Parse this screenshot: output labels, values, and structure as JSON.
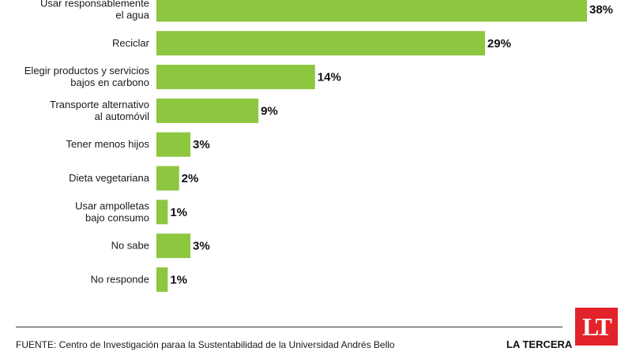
{
  "chart_data": {
    "type": "bar",
    "orientation": "horizontal",
    "categories": [
      [
        "Usar responsablemente",
        "el agua"
      ],
      [
        "Reciclar"
      ],
      [
        "Elegir productos y servicios",
        "bajos en carbono"
      ],
      [
        "Transporte alternativo",
        "al automóvil"
      ],
      [
        "Tener menos hijos"
      ],
      [
        "Dieta vegetariana"
      ],
      [
        "Usar ampolletas",
        "bajo consumo"
      ],
      [
        "No sabe"
      ],
      [
        "No responde"
      ]
    ],
    "values": [
      38,
      29,
      14,
      9,
      3,
      2,
      1,
      3,
      1
    ],
    "value_labels": [
      "38%",
      "29%",
      "14%",
      "9%",
      "3%",
      "2%",
      "1%",
      "3%",
      "1%"
    ],
    "bar_color": "#8dc63f",
    "xlim": [
      0,
      38
    ],
    "grid": false,
    "legend": "none"
  },
  "footer": {
    "source": "FUENTE: Centro de Investigación paraa la Sustentabilidad de la Universidad Andrés Bello",
    "brand": "LA TERCERA",
    "logo": "LT",
    "logo_color": "#e3232b"
  }
}
